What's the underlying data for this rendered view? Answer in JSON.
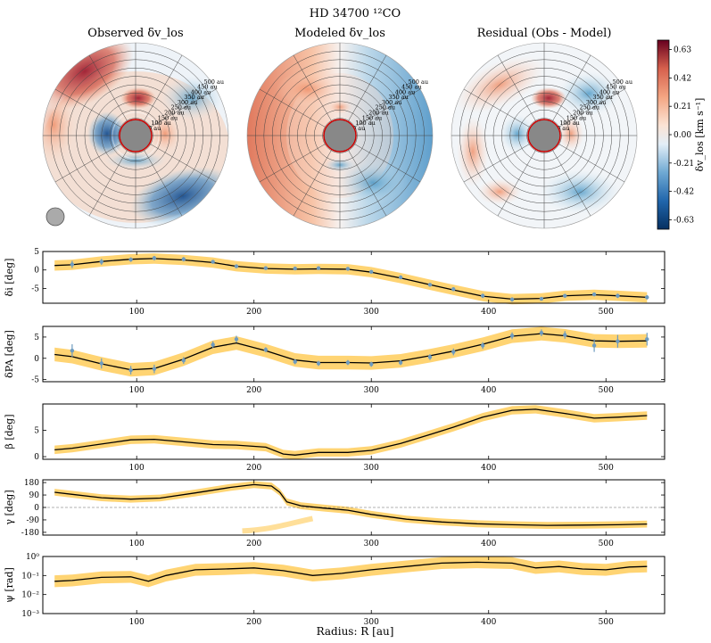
{
  "figure": {
    "title": "HD 34700 ¹²CO",
    "xlabel": "Radius: R [au]"
  },
  "colors": {
    "red": "#b2182b",
    "blue": "#2166ac",
    "band": "#ffb000",
    "line": "#000000",
    "points": "#6e9bbf"
  },
  "chart_data": [
    {
      "type": "heatmap",
      "title": "Observed δv_los",
      "ring_labels": [
        "50 au",
        "100 au",
        "150 au",
        "200 au",
        "250 au",
        "300 au",
        "350 au",
        "400 au",
        "450 au",
        "500 au"
      ],
      "colorbar": {
        "label": "δv_los [km s⁻¹]",
        "range": [
          -0.7,
          0.7
        ],
        "ticks": [
          "0.63",
          "0.42",
          "0.21",
          "0.00",
          "-0.21",
          "-0.42",
          "-0.63"
        ]
      }
    },
    {
      "type": "heatmap",
      "title": "Modeled δv_los",
      "ring_labels": [
        "50 au",
        "100 au",
        "150 au",
        "200 au",
        "250 au",
        "300 au",
        "350 au",
        "400 au",
        "450 au",
        "500 au"
      ]
    },
    {
      "type": "heatmap",
      "title": "Residual (Obs - Model)",
      "ring_labels": [
        "50 au",
        "100 au",
        "150 au",
        "200 au",
        "250 au",
        "300 au",
        "350 au",
        "400 au",
        "450 au",
        "500 au"
      ]
    },
    {
      "type": "line",
      "ylabel": "δi [deg]",
      "xlim": [
        20,
        550
      ],
      "ylim": [
        -9,
        5
      ],
      "yticks": [
        "5",
        "0",
        "-5"
      ],
      "xticks": [
        "100",
        "200",
        "300",
        "400",
        "500"
      ],
      "x": [
        45,
        70,
        95,
        115,
        140,
        165,
        185,
        210,
        235,
        255,
        280,
        300,
        325,
        350,
        370,
        395,
        420,
        445,
        465,
        490,
        510,
        535
      ],
      "y": [
        1.5,
        2.2,
        2.8,
        3.2,
        2.9,
        2.2,
        1.0,
        0.5,
        0.4,
        0.5,
        0.3,
        -0.5,
        -2.0,
        -4.0,
        -5.2,
        -7.0,
        -8.0,
        -7.8,
        -7.0,
        -6.6,
        -7.0,
        -7.4
      ],
      "yerr": [
        1.0,
        0.8,
        0.6,
        0.6,
        0.6,
        0.5,
        0.5,
        0.4,
        0.4,
        0.4,
        0.4,
        0.4,
        0.5,
        0.5,
        0.5,
        0.6,
        0.6,
        0.5,
        0.5,
        0.5,
        0.6,
        0.6
      ],
      "fit_x": [
        30,
        45,
        70,
        95,
        115,
        140,
        165,
        185,
        210,
        235,
        255,
        280,
        300,
        325,
        350,
        370,
        395,
        420,
        445,
        465,
        490,
        510,
        535
      ],
      "fit_y": [
        1.2,
        1.4,
        2.3,
        2.9,
        3.1,
        2.7,
        2.0,
        1.0,
        0.4,
        0.2,
        0.3,
        0.2,
        -0.6,
        -2.2,
        -4.0,
        -5.4,
        -7.1,
        -7.9,
        -7.7,
        -7.0,
        -6.7,
        -7.0,
        -7.4
      ]
    },
    {
      "type": "line",
      "ylabel": "δPA [deg]",
      "xlim": [
        20,
        550
      ],
      "ylim": [
        -5.5,
        7.5
      ],
      "yticks": [
        "5",
        "0",
        "-5"
      ],
      "xticks": [
        "100",
        "200",
        "300",
        "400",
        "500"
      ],
      "x": [
        45,
        70,
        95,
        115,
        140,
        165,
        185,
        210,
        235,
        255,
        280,
        300,
        325,
        350,
        370,
        395,
        420,
        445,
        465,
        490,
        510,
        535
      ],
      "y": [
        1.8,
        -1.2,
        -2.8,
        -2.5,
        -0.5,
        3.2,
        4.5,
        2.0,
        -0.8,
        -1.2,
        -1.0,
        -1.4,
        -1.0,
        0.3,
        1.5,
        3.0,
        5.3,
        6.0,
        5.5,
        3.0,
        4.0,
        4.5
      ],
      "yerr": [
        1.5,
        1.2,
        1.0,
        1.0,
        0.8,
        0.8,
        0.8,
        0.6,
        0.6,
        0.6,
        0.6,
        0.6,
        0.6,
        0.7,
        0.8,
        0.8,
        0.8,
        0.8,
        0.9,
        1.5,
        1.5,
        1.5
      ],
      "fit_x": [
        30,
        45,
        70,
        95,
        115,
        140,
        165,
        185,
        210,
        235,
        255,
        280,
        300,
        325,
        350,
        370,
        395,
        420,
        445,
        465,
        490,
        510,
        535
      ],
      "fit_y": [
        0.9,
        0.4,
        -1.3,
        -2.7,
        -2.4,
        -0.2,
        2.6,
        3.6,
        1.8,
        -0.4,
        -1.0,
        -1.0,
        -1.1,
        -0.6,
        0.6,
        1.7,
        3.3,
        5.2,
        5.8,
        5.3,
        4.1,
        4.0,
        4.1
      ]
    },
    {
      "type": "line",
      "ylabel": "β [deg]",
      "xlim": [
        20,
        550
      ],
      "ylim": [
        -0.5,
        10
      ],
      "yticks": [
        "5",
        "0"
      ],
      "xticks": [
        "100",
        "200",
        "300",
        "400",
        "500"
      ],
      "fit_x": [
        30,
        45,
        70,
        95,
        115,
        140,
        165,
        185,
        210,
        225,
        235,
        255,
        280,
        300,
        325,
        350,
        370,
        395,
        420,
        440,
        465,
        490,
        510,
        535
      ],
      "fit_y": [
        1.3,
        1.6,
        2.4,
        3.2,
        3.3,
        2.8,
        2.3,
        2.2,
        1.8,
        0.5,
        0.3,
        0.8,
        0.8,
        1.2,
        2.5,
        4.2,
        5.6,
        7.5,
        8.8,
        9.0,
        8.2,
        7.3,
        7.5,
        7.8
      ]
    },
    {
      "type": "line",
      "ylabel": "γ [deg]",
      "xlim": [
        20,
        550
      ],
      "ylim": [
        -200,
        200
      ],
      "yticks": [
        "180",
        "90",
        "0",
        "-90",
        "-180"
      ],
      "xticks": [
        "100",
        "200",
        "300",
        "400",
        "500"
      ],
      "fit_x": [
        30,
        45,
        70,
        95,
        120,
        150,
        180,
        200,
        215,
        222,
        228,
        240,
        260,
        280,
        300,
        330,
        360,
        390,
        420,
        450,
        480,
        510,
        535
      ],
      "fit_y": [
        110,
        95,
        70,
        60,
        68,
        105,
        145,
        165,
        155,
        110,
        40,
        12,
        -5,
        -20,
        -50,
        -85,
        -105,
        -118,
        -125,
        -130,
        -128,
        -125,
        -120
      ]
    },
    {
      "type": "line",
      "ylabel": "ψ [rad]",
      "scale": "log",
      "xlim": [
        20,
        550
      ],
      "ylim": [
        0.001,
        1
      ],
      "yticks": [
        "10⁰",
        "10⁻¹",
        "10⁻²",
        "10⁻³"
      ],
      "xticks": [
        "100",
        "200",
        "300",
        "400",
        "500"
      ],
      "fit_x": [
        30,
        45,
        70,
        95,
        110,
        125,
        150,
        175,
        200,
        225,
        250,
        275,
        300,
        330,
        360,
        390,
        420,
        440,
        460,
        480,
        500,
        520,
        535
      ],
      "fit_y": [
        0.05,
        0.055,
        0.08,
        0.085,
        0.05,
        0.1,
        0.2,
        0.22,
        0.25,
        0.18,
        0.1,
        0.13,
        0.2,
        0.3,
        0.45,
        0.5,
        0.45,
        0.25,
        0.3,
        0.22,
        0.2,
        0.28,
        0.3
      ]
    }
  ]
}
